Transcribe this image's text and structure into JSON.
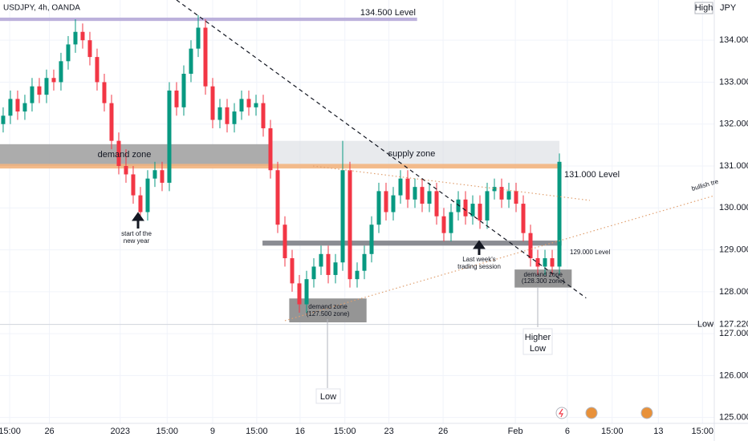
{
  "chart_data": {
    "type": "candlestick",
    "title": "USDJPY, 4h, OANDA",
    "currency": "JPY",
    "high_label": "High",
    "low_marker": {
      "name": "Low",
      "value": 127.22,
      "value_label": "127.220"
    },
    "up_color": "#089981",
    "down_color": "#f23645",
    "grid": true,
    "x": [
      0,
      1,
      2,
      3,
      4,
      5,
      6,
      7,
      8,
      9,
      10,
      11,
      12,
      13,
      14,
      15,
      16,
      17,
      18,
      19,
      20,
      21,
      22,
      23,
      24,
      25,
      26,
      27,
      28,
      29,
      30,
      31,
      32,
      33,
      34,
      35,
      36,
      37,
      38,
      39,
      40,
      41,
      42,
      43,
      44,
      45,
      46,
      47,
      48,
      49,
      50,
      51,
      52,
      53,
      54,
      55,
      56,
      57,
      58,
      59,
      60,
      61,
      62,
      63,
      64,
      65,
      66,
      67,
      68,
      69,
      70,
      71,
      72,
      73,
      74,
      75,
      76,
      77
    ],
    "open": [
      132.0,
      132.2,
      132.6,
      132.3,
      132.5,
      132.9,
      132.7,
      133.1,
      133.0,
      133.5,
      133.9,
      134.2,
      134.0,
      133.6,
      133.0,
      132.5,
      131.6,
      131.0,
      130.8,
      130.3,
      129.9,
      130.7,
      130.9,
      130.6,
      132.8,
      132.4,
      133.2,
      133.8,
      134.3,
      132.9,
      132.1,
      132.4,
      132.0,
      132.3,
      132.6,
      132.4,
      132.5,
      131.9,
      130.9,
      129.6,
      128.8,
      128.2,
      127.7,
      128.3,
      128.6,
      128.9,
      128.4,
      128.7,
      130.9,
      128.3,
      128.5,
      128.9,
      129.6,
      130.4,
      129.9,
      130.3,
      130.7,
      130.2,
      130.5,
      130.1,
      130.4,
      129.8,
      129.4,
      129.9,
      130.2,
      129.8,
      130.1,
      129.7,
      130.4,
      130.5,
      130.2,
      130.4,
      130.1,
      129.4,
      128.8,
      128.6,
      128.8,
      128.6
    ],
    "high": [
      132.4,
      132.8,
      132.8,
      132.7,
      133.1,
      133.1,
      133.3,
      133.3,
      133.7,
      134.1,
      134.5,
      134.4,
      134.2,
      133.8,
      133.2,
      132.7,
      131.8,
      131.4,
      131.0,
      130.5,
      130.9,
      131.1,
      131.1,
      133.0,
      133.0,
      133.4,
      134.0,
      134.6,
      134.5,
      133.1,
      132.6,
      132.6,
      132.5,
      132.8,
      132.8,
      132.7,
      132.7,
      132.1,
      131.1,
      129.8,
      129.0,
      128.4,
      128.5,
      128.8,
      129.1,
      129.1,
      128.9,
      131.6,
      131.1,
      128.7,
      129.1,
      129.8,
      130.6,
      130.6,
      130.5,
      130.9,
      130.9,
      130.7,
      130.7,
      130.6,
      130.6,
      130.0,
      130.1,
      130.4,
      130.4,
      130.3,
      130.3,
      130.6,
      130.7,
      130.7,
      130.6,
      130.6,
      130.3,
      129.6,
      129.0,
      129.0,
      129.0,
      131.3
    ],
    "low": [
      131.8,
      132.0,
      132.1,
      132.1,
      132.3,
      132.5,
      132.5,
      132.8,
      132.8,
      133.3,
      133.7,
      133.8,
      133.4,
      132.8,
      132.3,
      131.4,
      130.8,
      130.6,
      130.1,
      129.7,
      129.7,
      130.5,
      130.4,
      130.4,
      132.2,
      132.2,
      133.0,
      133.6,
      132.7,
      131.9,
      131.9,
      131.8,
      131.8,
      132.1,
      132.2,
      132.2,
      131.7,
      130.7,
      129.4,
      128.6,
      128.0,
      127.5,
      127.5,
      128.1,
      128.4,
      128.2,
      128.2,
      128.5,
      128.1,
      128.1,
      128.3,
      128.7,
      129.4,
      129.7,
      129.7,
      130.1,
      130.0,
      130.0,
      129.9,
      129.9,
      129.6,
      129.2,
      129.2,
      129.7,
      129.6,
      129.6,
      129.5,
      129.5,
      130.2,
      130.0,
      130.0,
      129.9,
      129.2,
      128.6,
      128.4,
      128.4,
      128.4,
      128.4
    ],
    "close": [
      132.2,
      132.6,
      132.3,
      132.5,
      132.9,
      132.7,
      133.1,
      133.0,
      133.5,
      133.9,
      134.2,
      134.0,
      133.6,
      133.0,
      132.5,
      131.6,
      131.0,
      130.8,
      130.3,
      129.9,
      130.7,
      130.9,
      130.6,
      132.8,
      132.4,
      133.2,
      133.8,
      134.3,
      132.9,
      132.1,
      132.4,
      132.0,
      132.3,
      132.6,
      132.4,
      132.5,
      131.9,
      130.9,
      129.6,
      128.8,
      128.2,
      127.7,
      128.3,
      128.6,
      128.9,
      128.4,
      128.7,
      130.9,
      128.3,
      128.5,
      128.9,
      129.6,
      130.4,
      129.9,
      130.3,
      130.7,
      130.2,
      130.5,
      130.1,
      130.4,
      129.8,
      129.4,
      129.9,
      130.2,
      129.8,
      130.1,
      129.7,
      130.4,
      130.5,
      130.2,
      130.4,
      130.1,
      129.4,
      128.8,
      128.6,
      128.8,
      128.6,
      131.1
    ],
    "xlim": [
      -0.44,
      98.44
    ],
    "xticks": [
      {
        "value": 0.9,
        "label": "15:00"
      },
      {
        "value": 6.4,
        "label": "26"
      },
      {
        "value": 16.2,
        "label": "2023"
      },
      {
        "value": 22.7,
        "label": "15:00"
      },
      {
        "value": 29,
        "label": "9"
      },
      {
        "value": 35.1,
        "label": "15:00"
      },
      {
        "value": 41.1,
        "label": "16"
      },
      {
        "value": 47.3,
        "label": "15:00"
      },
      {
        "value": 53.4,
        "label": "23"
      },
      {
        "value": 60.9,
        "label": "26"
      },
      {
        "value": 70.9,
        "label": "Feb"
      },
      {
        "value": 78.1,
        "label": "6"
      },
      {
        "value": 84.3,
        "label": "15:00"
      },
      {
        "value": 90.7,
        "label": "13"
      },
      {
        "value": 96.8,
        "label": "15:00"
      }
    ],
    "ylim": [
      124.86,
      134.96
    ],
    "yticks": [
      {
        "value": 125,
        "label": "125.000"
      },
      {
        "value": 126,
        "label": "126.000"
      },
      {
        "value": 127,
        "label": "127.000"
      },
      {
        "value": 128,
        "label": "128.000"
      },
      {
        "value": 129,
        "label": "129.000"
      },
      {
        "value": 130,
        "label": "130.000"
      },
      {
        "value": 131,
        "label": "131.000"
      },
      {
        "value": 132,
        "label": "132.000"
      },
      {
        "value": 133,
        "label": "133.000"
      },
      {
        "value": 134,
        "label": "134.000"
      }
    ],
    "zones": [
      {
        "lines": [
          "134.500 Level"
        ],
        "range": [
          134.46,
          134.54
        ],
        "span": [
          -0.44,
          57.3
        ],
        "color": "#b5a8d8"
      },
      {
        "lines": [
          "demand zone"
        ],
        "range": [
          131.0,
          131.52
        ],
        "span": [
          -0.44,
          36.8
        ],
        "color": "#a3a3a3"
      },
      {
        "lines": [
          "supply zone"
        ],
        "range": [
          131.04,
          131.6
        ],
        "span": [
          36.8,
          77
        ],
        "color": "#d6d8de"
      },
      {
        "lines": [
          "131.000 Level"
        ],
        "range": [
          130.94,
          131.05
        ],
        "span": [
          -0.44,
          77.3
        ],
        "color": "#f2b47e"
      },
      {
        "lines": [
          "129.000 Level"
        ],
        "range": [
          129.1,
          129.22
        ],
        "span": [
          35.9,
          77.3
        ],
        "color": "#7d7f87"
      },
      {
        "lines": [
          "demand zone",
          "(127.500 zone)"
        ],
        "range": [
          127.27,
          127.84
        ],
        "span": [
          39.6,
          50.3
        ],
        "color": "#8a8a8a"
      },
      {
        "lines": [
          "demand zone",
          "(128.300 zone)"
        ],
        "range": [
          128.1,
          128.53
        ],
        "span": [
          70.8,
          78.7
        ],
        "color": "#8a8a8a"
      }
    ],
    "trendlines": [
      {
        "from": [
          24,
          134.96
        ],
        "to": [
          80.7,
          127.85
        ],
        "color": "#131722",
        "style": "dashed"
      },
      {
        "from": [
          39,
          127.31
        ],
        "to": [
          98.4,
          130.29
        ],
        "color": "#e0a070",
        "style": "dotted",
        "label": "bullish tre"
      },
      {
        "from": [
          42.9,
          131.0
        ],
        "to": [
          81.2,
          130.18
        ],
        "color": "#e0a070",
        "style": "dotted"
      }
    ],
    "annotations": [
      {
        "lines": [
          "start of the",
          "new year"
        ]
      },
      {
        "lines": [
          "Last week's",
          "trading session"
        ]
      },
      {
        "lines": [
          "Higher",
          "Low"
        ]
      },
      {
        "lines": [
          "Low"
        ]
      }
    ]
  }
}
